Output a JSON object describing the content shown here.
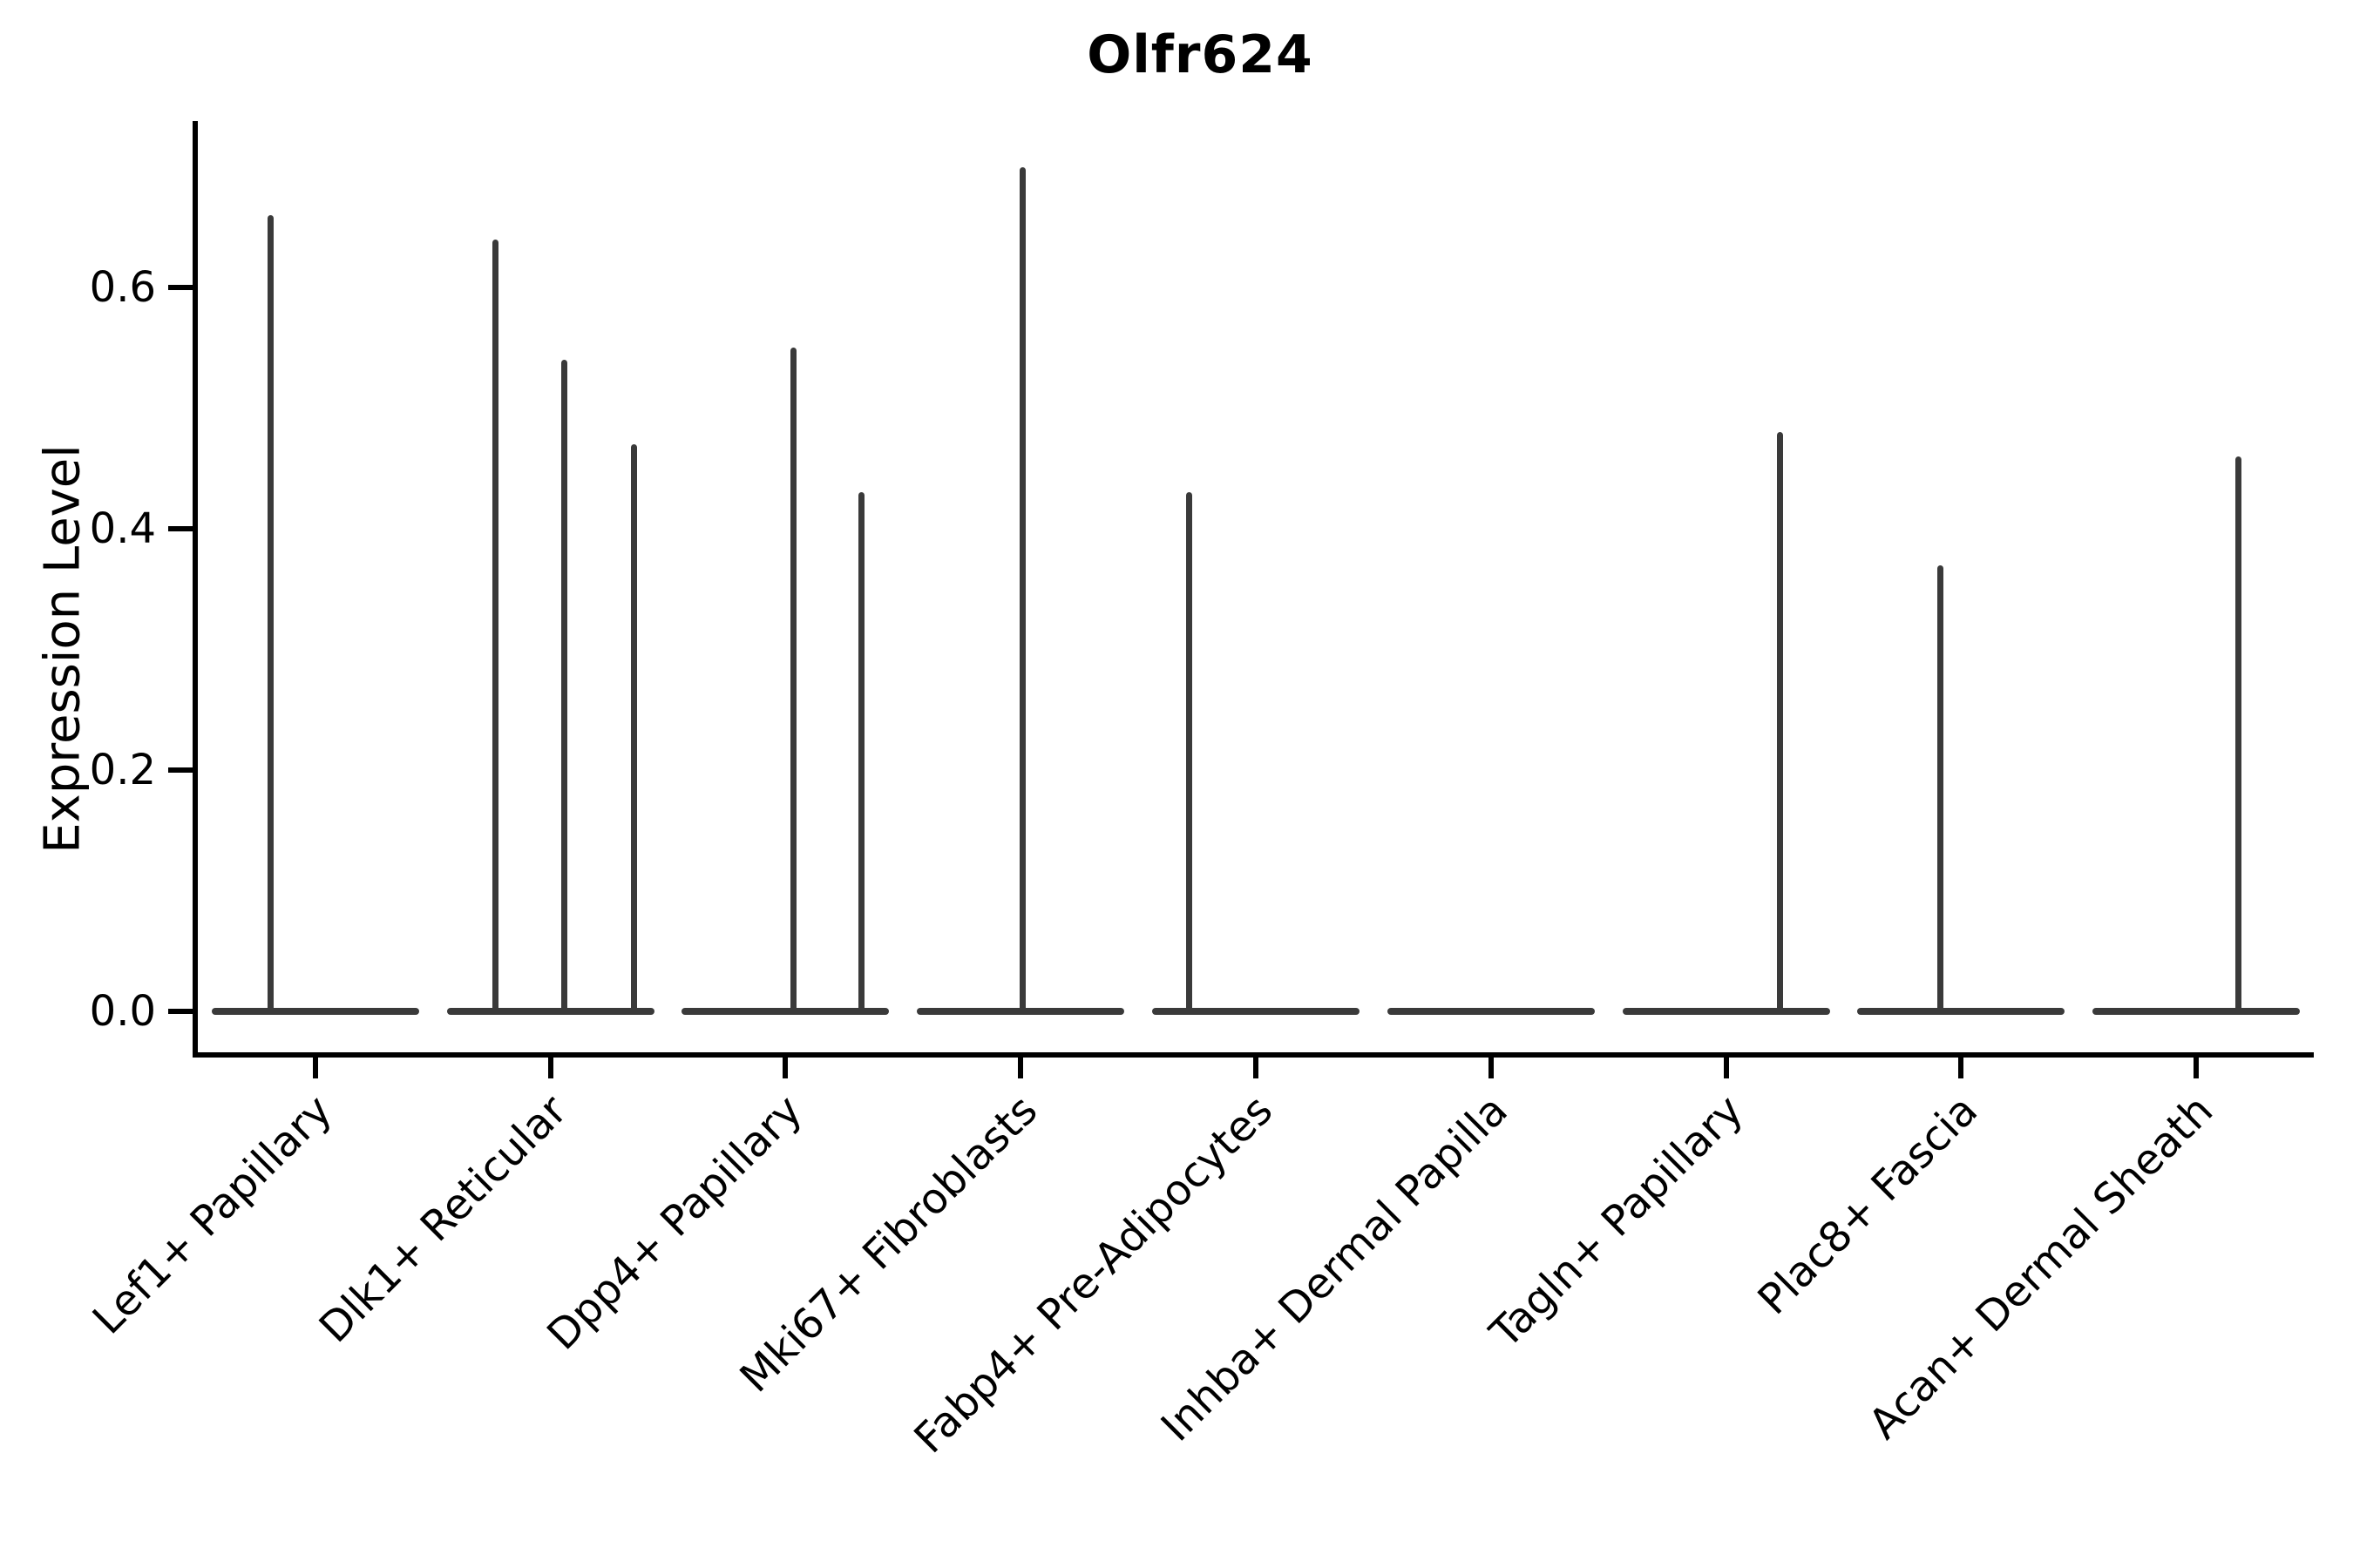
{
  "chart_data": {
    "type": "violin",
    "title": "Olfr624",
    "ylabel": "Expression Level",
    "xlabel": "",
    "grid": false,
    "legend": "none",
    "ylim": [
      -0.036,
      0.74
    ],
    "yticks": [
      "0.0",
      "0.2",
      "0.4",
      "0.6"
    ],
    "ytick_values": [
      0.0,
      0.2,
      0.4,
      0.6
    ],
    "colors": {
      "violin": "#3a3a3a",
      "axis": "#000000",
      "text": "#000000",
      "background": "#ffffff"
    },
    "description": "Violin plot of Olfr624 expression; each cell type shows a flat density base at 0 with thin spikes at the expression levels of rare positive cells.",
    "categories": [
      {
        "label": "Lef1+ Papillary",
        "spikes": [
          {
            "value": 0.66,
            "dx": -52
          }
        ]
      },
      {
        "label": "Dlk1+ Reticular",
        "spikes": [
          {
            "value": 0.64,
            "dx": -64
          },
          {
            "value": 0.54,
            "dx": 15
          },
          {
            "value": 0.47,
            "dx": 95
          }
        ]
      },
      {
        "label": "Dpp4+ Papillary",
        "spikes": [
          {
            "value": 0.55,
            "dx": 9
          },
          {
            "value": 0.43,
            "dx": 87
          }
        ]
      },
      {
        "label": "Mki67+ Fibroblasts",
        "spikes": [
          {
            "value": 0.7,
            "dx": 2
          }
        ]
      },
      {
        "label": "Fabp4+ Pre-Adipocytes",
        "spikes": [
          {
            "value": 0.43,
            "dx": -77
          }
        ]
      },
      {
        "label": "Inhba+ Dermal Papilla",
        "spikes": []
      },
      {
        "label": "Tagln+ Papillary",
        "spikes": [
          {
            "value": 0.48,
            "dx": 61
          }
        ]
      },
      {
        "label": "Plac8+ Fascia",
        "spikes": [
          {
            "value": 0.37,
            "dx": -24
          }
        ]
      },
      {
        "label": "Acan+ Dermal Sheath",
        "spikes": [
          {
            "value": 0.46,
            "dx": 48
          }
        ]
      }
    ]
  }
}
